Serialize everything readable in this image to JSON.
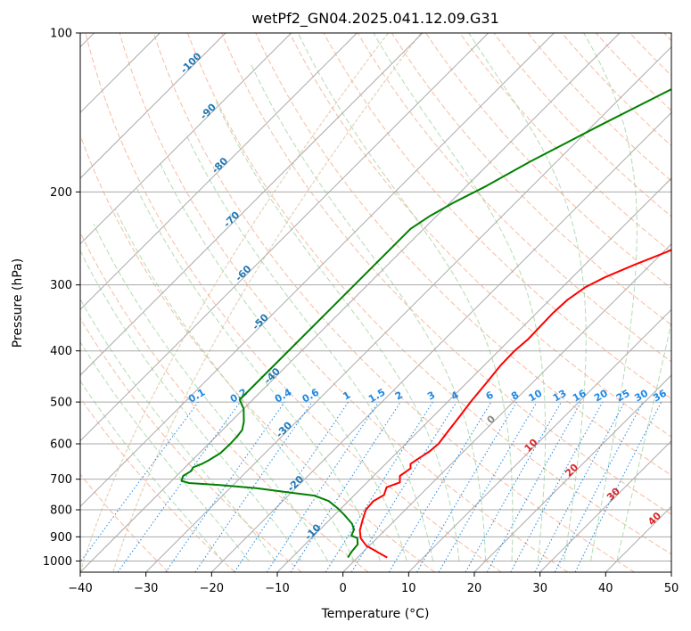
{
  "chart_data": {
    "type": "line",
    "title": "wetPf2_GN04.2025.041.12.09.G31",
    "xlabel": "Temperature (°C)",
    "ylabel": "Pressure (hPa)",
    "xlim": [
      -40,
      50
    ],
    "ylim": [
      1050,
      100
    ],
    "y_scale": "log",
    "x_ticks": [
      -40,
      -30,
      -20,
      -10,
      0,
      10,
      20,
      30,
      40,
      50
    ],
    "y_ticks": [
      1000,
      900,
      800,
      700,
      600,
      500,
      400,
      300,
      200,
      100
    ],
    "grid": true,
    "series": [
      {
        "color": "#ff0000",
        "x_unit": "°C",
        "points": [
          [
            4.5,
            985
          ],
          [
            2.5,
            965
          ],
          [
            -0.5,
            935
          ],
          [
            -2.5,
            905
          ],
          [
            -3.8,
            875
          ],
          [
            -5.0,
            835
          ],
          [
            -6.0,
            800
          ],
          [
            -6.2,
            770
          ],
          [
            -5.5,
            750
          ],
          [
            -6.3,
            725
          ],
          [
            -5.0,
            710
          ],
          [
            -6.0,
            690
          ],
          [
            -5.5,
            668
          ],
          [
            -6.2,
            655
          ],
          [
            -5.8,
            640
          ],
          [
            -5.2,
            620
          ],
          [
            -5.0,
            600
          ],
          [
            -5.5,
            565
          ],
          [
            -6.0,
            530
          ],
          [
            -6.5,
            500
          ],
          [
            -7.0,
            460
          ],
          [
            -7.5,
            425
          ],
          [
            -7.6,
            400
          ],
          [
            -7.3,
            380
          ],
          [
            -7.4,
            360
          ],
          [
            -7.5,
            340
          ],
          [
            -7.3,
            320
          ],
          [
            -6.5,
            303
          ],
          [
            -5.0,
            290
          ],
          [
            -2.5,
            275
          ],
          [
            0.5,
            260
          ],
          [
            3.0,
            245
          ],
          [
            6.0,
            230
          ],
          [
            8.5,
            218
          ],
          [
            10.0,
            205
          ],
          [
            11.5,
            192
          ],
          [
            13.0,
            180
          ],
          [
            15.5,
            170
          ],
          [
            19.5,
            157
          ],
          [
            23.0,
            145
          ],
          [
            26.0,
            133
          ],
          [
            29.0,
            121
          ],
          [
            31.5,
            110
          ],
          [
            33.5,
            100
          ]
        ]
      },
      {
        "color": "#008000",
        "x_unit": "°C",
        "points": [
          [
            -1.5,
            985
          ],
          [
            -1.8,
            960
          ],
          [
            -2.0,
            930
          ],
          [
            -3.0,
            905
          ],
          [
            -4.3,
            895
          ],
          [
            -4.8,
            872
          ],
          [
            -6.0,
            850
          ],
          [
            -8.5,
            818
          ],
          [
            -10.5,
            795
          ],
          [
            -13.0,
            770
          ],
          [
            -16.0,
            752
          ],
          [
            -21.0,
            740
          ],
          [
            -26.0,
            728
          ],
          [
            -32.0,
            718
          ],
          [
            -37.0,
            712
          ],
          [
            -38.5,
            705
          ],
          [
            -39.0,
            690
          ],
          [
            -38.5,
            675
          ],
          [
            -38.8,
            665
          ],
          [
            -38.0,
            655
          ],
          [
            -37.5,
            645
          ],
          [
            -36.8,
            625
          ],
          [
            -36.7,
            600
          ],
          [
            -36.8,
            580
          ],
          [
            -37.0,
            565
          ],
          [
            -38.0,
            545
          ],
          [
            -40.0,
            515
          ],
          [
            -42.0,
            495
          ],
          [
            -42.0,
            235
          ],
          [
            -41.0,
            222
          ],
          [
            -39.5,
            210
          ],
          [
            -37.0,
            195
          ],
          [
            -34.0,
            175
          ],
          [
            -29.0,
            150
          ],
          [
            -22.0,
            122
          ],
          [
            -17.0,
            100
          ]
        ]
      }
    ],
    "dry_adiabat_labels": [
      "-100",
      "-90",
      "-80",
      "-70",
      "-60",
      "-50",
      "-40",
      "-30",
      "-20",
      "-10"
    ],
    "mixing_ratio_labels": [
      "0.1",
      "0.2",
      "0.4",
      "0.6",
      "1",
      "1.5",
      "2",
      "3",
      "4",
      "6",
      "8",
      "10",
      "13",
      "16",
      "20",
      "25",
      "30",
      "36"
    ],
    "isotherm_labels": [
      "0",
      "10",
      "20",
      "30",
      "40"
    ],
    "colors": {
      "temperature": "#ff0000",
      "dewpoint": "#008000",
      "isotherm": "#aaaaaa",
      "dry_adiabat": "#f4a582",
      "moist_adiabat": "#9fd39f",
      "mixing_ratio": "#1e88e5",
      "dry_adiabat_label": "#1f77b4",
      "isotherm_label_cold": "#888888",
      "isotherm_label_warm": "#d62728",
      "curved_line": "#d2b48c"
    }
  }
}
